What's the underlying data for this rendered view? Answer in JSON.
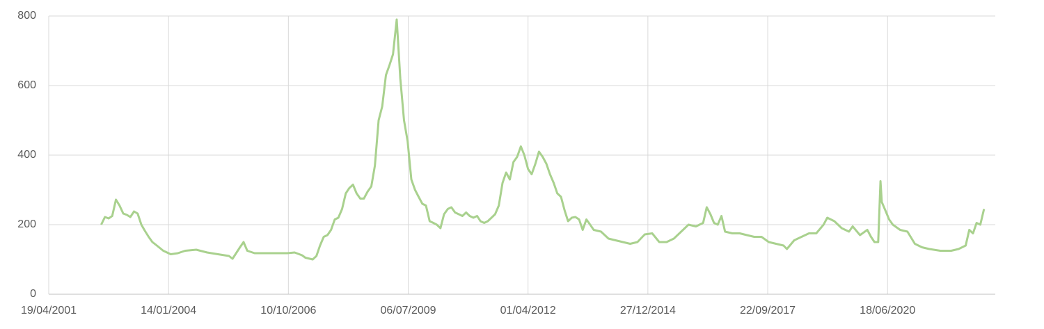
{
  "chart_data": {
    "type": "line",
    "color": "#a9d18e",
    "grid": true,
    "xlim": [
      "19/04/2001",
      "04/12/2022"
    ],
    "xticks": [
      "19/04/2001",
      "14/01/2004",
      "10/10/2006",
      "06/07/2009",
      "01/04/2012",
      "27/12/2014",
      "22/09/2017",
      "18/06/2020"
    ],
    "ylim": [
      0,
      800
    ],
    "yticks": [
      0,
      200,
      400,
      600,
      800
    ],
    "x": [
      "01/07/2002",
      "01/08/2002",
      "01/09/2002",
      "01/10/2002",
      "01/11/2002",
      "01/12/2002",
      "01/01/2003",
      "01/02/2003",
      "01/03/2003",
      "01/04/2003",
      "01/05/2003",
      "01/06/2003",
      "01/07/2003",
      "01/08/2003",
      "01/09/2003",
      "01/10/2003",
      "01/12/2003",
      "01/02/2004",
      "01/04/2004",
      "01/06/2004",
      "01/09/2004",
      "01/12/2004",
      "01/03/2005",
      "01/06/2005",
      "01/07/2005",
      "01/09/2005",
      "01/10/2005",
      "01/11/2005",
      "01/01/2006",
      "01/06/2006",
      "01/10/2006",
      "01/12/2006",
      "01/02/2007",
      "01/03/2007",
      "01/05/2007",
      "01/06/2007",
      "01/07/2007",
      "01/08/2007",
      "01/09/2007",
      "01/10/2007",
      "01/11/2007",
      "01/12/2007",
      "01/01/2008",
      "01/02/2008",
      "01/03/2008",
      "01/04/2008",
      "01/05/2008",
      "01/06/2008",
      "01/07/2008",
      "01/08/2008",
      "01/09/2008",
      "01/10/2008",
      "01/11/2008",
      "01/12/2008",
      "01/01/2009",
      "01/02/2009",
      "01/03/2009",
      "01/04/2009",
      "01/05/2009",
      "01/06/2009",
      "01/07/2009",
      "01/08/2009",
      "01/09/2009",
      "01/10/2009",
      "01/11/2009",
      "01/12/2009",
      "01/01/2010",
      "01/02/2010",
      "01/03/2010",
      "01/04/2010",
      "01/05/2010",
      "01/06/2010",
      "01/07/2010",
      "01/08/2010",
      "01/09/2010",
      "01/10/2010",
      "01/11/2010",
      "01/12/2010",
      "01/01/2011",
      "01/02/2011",
      "01/03/2011",
      "01/04/2011",
      "01/05/2011",
      "01/06/2011",
      "01/07/2011",
      "01/08/2011",
      "01/09/2011",
      "01/10/2011",
      "01/11/2011",
      "01/12/2011",
      "01/01/2012",
      "01/02/2012",
      "01/03/2012",
      "01/04/2012",
      "01/05/2012",
      "01/06/2012",
      "01/07/2012",
      "01/08/2012",
      "01/09/2012",
      "01/10/2012",
      "01/11/2012",
      "01/12/2012",
      "01/01/2013",
      "01/02/2013",
      "01/03/2013",
      "01/04/2013",
      "01/05/2013",
      "01/06/2013",
      "01/07/2013",
      "01/08/2013",
      "01/09/2013",
      "01/10/2013",
      "01/12/2013",
      "01/02/2014",
      "01/04/2014",
      "01/06/2014",
      "01/08/2014",
      "01/10/2014",
      "01/12/2014",
      "01/02/2015",
      "01/04/2015",
      "01/06/2015",
      "01/08/2015",
      "01/10/2015",
      "01/12/2015",
      "01/02/2016",
      "01/04/2016",
      "01/05/2016",
      "01/06/2016",
      "01/07/2016",
      "01/08/2016",
      "01/09/2016",
      "01/10/2016",
      "01/12/2016",
      "01/02/2017",
      "01/04/2017",
      "01/06/2017",
      "01/08/2017",
      "01/10/2017",
      "01/12/2017",
      "01/02/2018",
      "01/03/2018",
      "01/05/2018",
      "01/07/2018",
      "01/09/2018",
      "01/11/2018",
      "01/01/2019",
      "01/02/2019",
      "01/04/2019",
      "01/06/2019",
      "01/08/2019",
      "01/09/2019",
      "01/11/2019",
      "01/01/2020",
      "01/02/2020",
      "01/03/2020",
      "01/04/2020",
      "20/04/2020",
      "01/05/2020",
      "01/06/2020",
      "01/07/2020",
      "01/08/2020",
      "01/10/2020",
      "01/12/2020",
      "01/02/2021",
      "01/04/2021",
      "01/06/2021",
      "01/09/2021",
      "01/12/2021",
      "01/02/2022",
      "01/04/2022",
      "01/05/2022",
      "01/06/2022",
      "01/07/2022",
      "01/08/2022",
      "01/09/2022"
    ],
    "values": [
      200,
      222,
      218,
      225,
      272,
      255,
      232,
      228,
      222,
      238,
      232,
      200,
      182,
      165,
      150,
      142,
      125,
      115,
      118,
      125,
      128,
      120,
      115,
      110,
      102,
      135,
      150,
      125,
      118,
      118,
      118,
      120,
      112,
      105,
      100,
      110,
      140,
      165,
      170,
      185,
      215,
      220,
      245,
      290,
      305,
      315,
      290,
      275,
      275,
      295,
      310,
      370,
      500,
      540,
      630,
      660,
      690,
      790,
      620,
      500,
      440,
      330,
      300,
      280,
      260,
      255,
      210,
      205,
      200,
      190,
      230,
      245,
      250,
      235,
      230,
      225,
      235,
      225,
      220,
      225,
      210,
      205,
      210,
      220,
      230,
      255,
      320,
      350,
      330,
      380,
      395,
      425,
      400,
      360,
      345,
      375,
      410,
      395,
      375,
      345,
      320,
      290,
      280,
      240,
      210,
      220,
      222,
      215,
      185,
      215,
      200,
      185,
      180,
      160,
      155,
      150,
      145,
      150,
      172,
      175,
      150,
      150,
      160,
      180,
      200,
      195,
      205,
      250,
      230,
      205,
      200,
      225,
      180,
      175,
      175,
      170,
      165,
      165,
      150,
      145,
      140,
      130,
      155,
      165,
      175,
      175,
      200,
      220,
      210,
      190,
      180,
      195,
      170,
      185,
      165,
      150,
      150,
      325,
      265,
      240,
      215,
      200,
      185,
      180,
      145,
      135,
      130,
      125,
      125,
      130,
      140,
      185,
      175,
      205,
      200,
      245
    ]
  }
}
